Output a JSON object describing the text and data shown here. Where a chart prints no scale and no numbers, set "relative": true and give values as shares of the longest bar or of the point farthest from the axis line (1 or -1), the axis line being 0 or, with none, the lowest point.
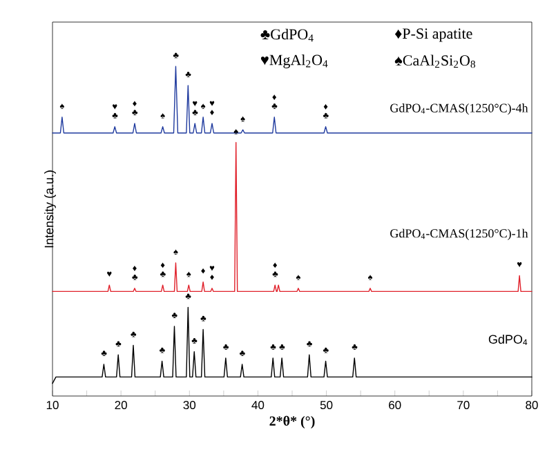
{
  "chart_data": {
    "type": "line",
    "relative": true,
    "xlabel": "2*θ* (°)",
    "ylabel": "Intensity (a.u.)",
    "xlim": [
      10,
      80
    ],
    "xticks": [
      10,
      {
        "value": 15,
        "label": null
      },
      20,
      {
        "value": 25,
        "label": null
      },
      30,
      {
        "value": 35,
        "label": null
      },
      40,
      {
        "value": 45,
        "label": null
      },
      50,
      {
        "value": 55,
        "label": null
      },
      60,
      {
        "value": 65,
        "label": null
      },
      70,
      {
        "value": 75,
        "label": null
      },
      80
    ],
    "marker": "none",
    "line_style": "solid",
    "series": [
      {
        "name": "GdPO$_{4}$-CMAS(1250°C)-4h",
        "color": "#1f3a9e",
        "x": [
          10,
          11.15,
          11.4,
          11.65,
          18.85,
          19.1,
          19.35,
          21.75,
          22.0,
          22.25,
          25.85,
          26.1,
          26.35,
          27.7,
          28.0,
          28.3,
          29.55,
          29.8,
          30.05,
          30.55,
          30.8,
          31.05,
          31.75,
          32.0,
          32.25,
          33.05,
          33.3,
          33.55,
          37.55,
          37.8,
          38.05,
          42.15,
          42.4,
          42.65,
          49.65,
          49.9,
          50.15,
          80
        ],
        "values": [
          0.79,
          0.79,
          0.84,
          0.79,
          0.79,
          0.81,
          0.79,
          0.79,
          0.82,
          0.79,
          0.79,
          0.81,
          0.79,
          0.79,
          1.0,
          0.79,
          0.79,
          0.94,
          0.79,
          0.79,
          0.82,
          0.79,
          0.79,
          0.84,
          0.79,
          0.79,
          0.82,
          0.79,
          0.79,
          0.8,
          0.79,
          0.79,
          0.84,
          0.79,
          0.79,
          0.81,
          0.79,
          0.79
        ]
      },
      {
        "name": "GdPO$_{4}$-CMAS(1250°C)-1h",
        "color": "#e0202a",
        "x": [
          10,
          18.1,
          18.3,
          18.5,
          21.8,
          22.0,
          22.2,
          25.9,
          26.1,
          26.3,
          27.8,
          28.0,
          28.2,
          29.7,
          29.9,
          30.1,
          31.8,
          32.0,
          32.2,
          33.1,
          33.3,
          33.5,
          36.6,
          36.8,
          37.0,
          42.3,
          42.5,
          42.7,
          42.8,
          43.0,
          43.2,
          45.7,
          45.9,
          46.1,
          56.2,
          56.4,
          56.6,
          78.0,
          78.2,
          78.4,
          80
        ],
        "values": [
          0.29,
          0.29,
          0.31,
          0.29,
          0.29,
          0.3,
          0.29,
          0.29,
          0.31,
          0.29,
          0.29,
          0.38,
          0.29,
          0.29,
          0.31,
          0.29,
          0.29,
          0.32,
          0.29,
          0.29,
          0.3,
          0.29,
          0.29,
          0.76,
          0.29,
          0.29,
          0.31,
          0.29,
          0.29,
          0.31,
          0.29,
          0.29,
          0.3,
          0.29,
          0.29,
          0.3,
          0.29,
          0.29,
          0.34,
          0.29,
          0.29
        ]
      },
      {
        "name": "GdPO$_{4}$",
        "color": "#000000",
        "x": [
          10,
          10.5,
          17.25,
          17.5,
          17.75,
          19.35,
          19.6,
          19.85,
          21.55,
          21.8,
          22.05,
          25.75,
          26.0,
          26.25,
          27.55,
          27.8,
          28.05,
          29.55,
          29.8,
          30.05,
          30.45,
          30.7,
          30.95,
          31.75,
          32.0,
          32.25,
          35.05,
          35.3,
          35.55,
          37.45,
          37.7,
          37.95,
          41.95,
          42.2,
          42.45,
          43.25,
          43.5,
          43.75,
          47.25,
          47.5,
          47.75,
          49.65,
          49.9,
          50.15,
          53.85,
          54.1,
          54.35,
          80
        ],
        "values": [
          0.0,
          0.02,
          0.02,
          0.06,
          0.02,
          0.02,
          0.09,
          0.02,
          0.02,
          0.12,
          0.02,
          0.02,
          0.07,
          0.02,
          0.02,
          0.18,
          0.02,
          0.02,
          0.24,
          0.02,
          0.02,
          0.1,
          0.02,
          0.02,
          0.17,
          0.02,
          0.02,
          0.08,
          0.02,
          0.02,
          0.06,
          0.02,
          0.02,
          0.08,
          0.02,
          0.02,
          0.08,
          0.02,
          0.02,
          0.09,
          0.02,
          0.02,
          0.07,
          0.02,
          0.02,
          0.08,
          0.02,
          0.02
        ]
      }
    ],
    "annotations": [
      "♣GdPO$_{4}$",
      "♦P-Si apatite",
      "♥MgAl$_{2}$O$_{4}$",
      "♠CaAl$_{2}$Si$_{2}$O$_{8}$",
      {
        "text": "♠",
        "x": 11.4,
        "y": 0.84
      },
      {
        "text": "♥ ♣",
        "x": 19.1,
        "y": 0.81
      },
      {
        "text": "♦ ♣",
        "x": 22.0,
        "y": 0.82
      },
      {
        "text": "♠",
        "x": 26.1,
        "y": 0.81
      },
      {
        "text": "♣",
        "x": 28.0,
        "y": 1.0
      },
      {
        "text": "♣",
        "x": 29.8,
        "y": 0.94
      },
      {
        "text": "♥ ♣",
        "x": 30.8,
        "y": 0.82
      },
      {
        "text": "♠",
        "x": 32.0,
        "y": 0.84
      },
      {
        "text": "♥ ♦",
        "x": 33.3,
        "y": 0.82
      },
      {
        "text": "♠",
        "x": 37.8,
        "y": 0.8
      },
      {
        "text": "♦ ♣",
        "x": 42.4,
        "y": 0.84
      },
      {
        "text": "♦ ♣",
        "x": 49.9,
        "y": 0.81
      },
      {
        "text": "♥",
        "x": 18.3,
        "y": 0.31
      },
      {
        "text": "♦ ♣",
        "x": 22.0,
        "y": 0.3
      },
      {
        "text": "♦ ♣",
        "x": 26.1,
        "y": 0.31
      },
      {
        "text": "♠",
        "x": 28.0,
        "y": 0.38
      },
      {
        "text": "♠",
        "x": 29.9,
        "y": 0.31
      },
      {
        "text": "♦",
        "x": 32.0,
        "y": 0.32
      },
      {
        "text": "♥ ♦",
        "x": 33.3,
        "y": 0.3
      },
      {
        "text": "♠",
        "x": 36.8,
        "y": 0.76
      },
      {
        "text": "♦ ♣",
        "x": 42.5,
        "y": 0.31
      },
      {
        "text": "♠",
        "x": 45.9,
        "y": 0.3
      },
      {
        "text": "♠",
        "x": 56.4,
        "y": 0.3
      },
      {
        "text": "♥",
        "x": 78.2,
        "y": 0.34
      },
      {
        "text": "♣",
        "x": 17.5,
        "y": 0.06
      },
      {
        "text": "♣",
        "x": 19.6,
        "y": 0.09
      },
      {
        "text": "♣",
        "x": 21.8,
        "y": 0.12
      },
      {
        "text": "♣",
        "x": 26.0,
        "y": 0.07
      },
      {
        "text": "♣",
        "x": 27.8,
        "y": 0.18
      },
      {
        "text": "♣",
        "x": 29.8,
        "y": 0.24
      },
      {
        "text": "♣",
        "x": 30.7,
        "y": 0.1
      },
      {
        "text": "♣",
        "x": 32.0,
        "y": 0.17
      },
      {
        "text": "♣",
        "x": 35.3,
        "y": 0.08
      },
      {
        "text": "♣",
        "x": 37.7,
        "y": 0.06
      },
      {
        "text": "♣",
        "x": 42.2,
        "y": 0.08
      },
      {
        "text": "♣",
        "x": 43.5,
        "y": 0.08
      },
      {
        "text": "♣",
        "x": 47.5,
        "y": 0.09
      },
      {
        "text": "♣",
        "x": 49.9,
        "y": 0.07
      },
      {
        "text": "♣",
        "x": 54.1,
        "y": 0.08
      }
    ]
  }
}
